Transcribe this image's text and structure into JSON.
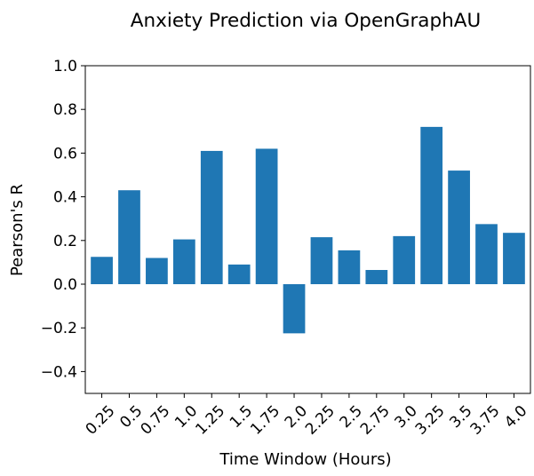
{
  "chart_data": {
    "type": "bar",
    "title": "Anxiety Prediction via OpenGraphAU",
    "xlabel": "Time Window (Hours)",
    "ylabel": "Pearson's R",
    "categories": [
      "0.25",
      "0.5",
      "0.75",
      "1.0",
      "1.25",
      "1.5",
      "1.75",
      "2.0",
      "2.25",
      "2.5",
      "2.75",
      "3.0",
      "3.25",
      "3.5",
      "3.75",
      "4.0"
    ],
    "values": [
      0.125,
      0.43,
      0.12,
      0.205,
      0.61,
      0.09,
      0.62,
      -0.225,
      0.215,
      0.155,
      0.065,
      0.22,
      0.72,
      0.52,
      0.275,
      0.235
    ],
    "ylim": [
      -0.5,
      1.0
    ],
    "yticks": [
      -0.4,
      -0.2,
      0.0,
      0.2,
      0.4,
      0.6,
      0.8,
      1.0
    ],
    "ytick_labels": [
      "−0.4",
      "−0.2",
      "0.0",
      "0.2",
      "0.4",
      "0.6",
      "0.8",
      "1.0"
    ],
    "bar_color": "#1f77b4",
    "grid": false,
    "legend": "none"
  }
}
